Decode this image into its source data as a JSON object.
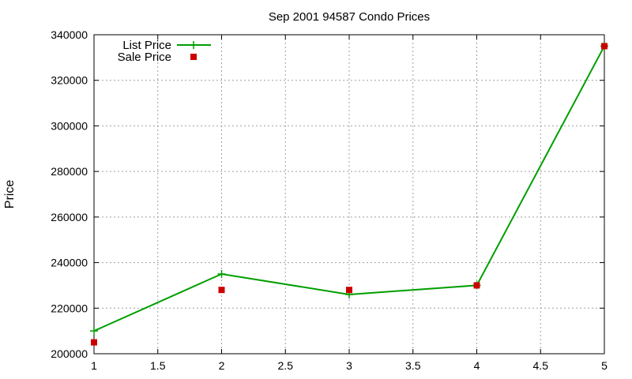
{
  "chart_data": {
    "type": "line",
    "title": "Sep 2001 94587 Condo Prices",
    "xlabel": "",
    "ylabel": "Price",
    "xlim": [
      1,
      5
    ],
    "ylim": [
      200000,
      340000
    ],
    "xticks": [
      1,
      1.5,
      2,
      2.5,
      3,
      3.5,
      4,
      4.5,
      5
    ],
    "xtick_labels": [
      "1",
      "1.5",
      "2",
      "2.5",
      "3",
      "3.5",
      "4",
      "4.5",
      "5"
    ],
    "yticks": [
      200000,
      220000,
      240000,
      260000,
      280000,
      300000,
      320000,
      340000
    ],
    "ytick_labels": [
      "200000",
      "220000",
      "240000",
      "260000",
      "280000",
      "300000",
      "320000",
      "340000"
    ],
    "grid": true,
    "legend_position": "top-left",
    "series": [
      {
        "name": "List Price",
        "style": "linespoints",
        "marker": "plus",
        "color": "#009e00",
        "x": [
          1,
          2,
          3,
          4,
          5
        ],
        "y": [
          210000,
          235000,
          226000,
          230000,
          335000
        ]
      },
      {
        "name": "Sale Price",
        "style": "points",
        "marker": "square",
        "color": "#cc0000",
        "x": [
          1,
          2,
          3,
          4,
          5
        ],
        "y": [
          205000,
          228000,
          228000,
          230000,
          335000
        ]
      }
    ]
  }
}
